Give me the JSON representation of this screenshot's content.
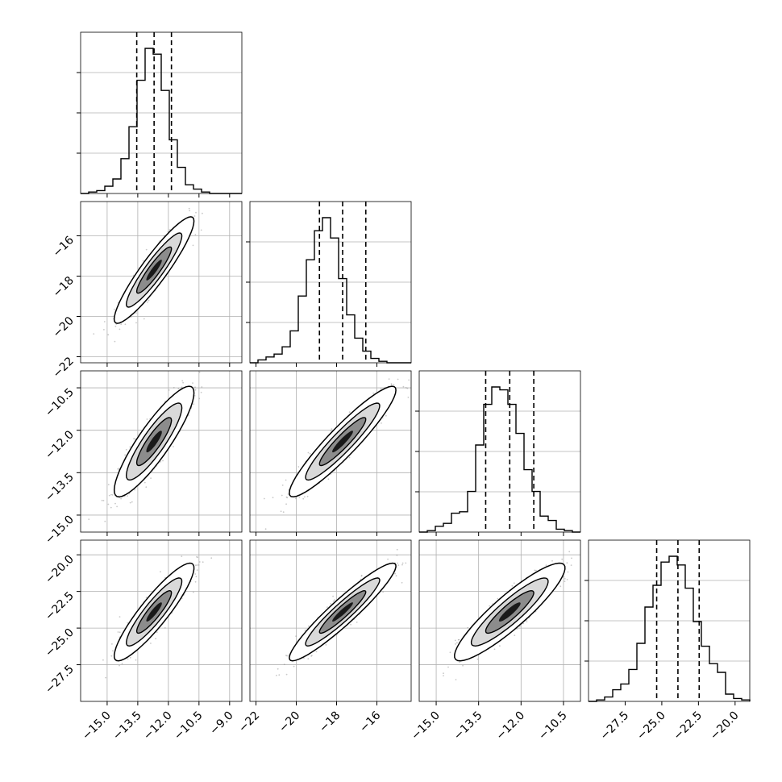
{
  "chart_data": {
    "type": "corner",
    "title": "",
    "params": [
      {
        "xlim": [
          -16.3,
          -8.4
        ],
        "xticks": [
          "−15.0",
          "−13.5",
          "−12.0",
          "−10.5",
          "−9.0"
        ],
        "xtick_values": [
          -15.0,
          -13.5,
          -12.0,
          -10.5,
          -9.0
        ],
        "mean": -12.7,
        "sd": 0.85
      },
      {
        "xlim": [
          -22.3,
          -14.3
        ],
        "xticks": [
          "−22",
          "−20",
          "−18",
          "−16"
        ],
        "xtick_values": [
          -22,
          -20,
          -18,
          -16
        ],
        "mean": -17.7,
        "sd": 1.15
      },
      {
        "xlim": [
          -15.6,
          -9.9
        ],
        "xticks": [
          "−15.0",
          "−13.5",
          "−12.0",
          "−10.5"
        ],
        "xtick_values": [
          -15.0,
          -13.5,
          -12.0,
          -10.5
        ],
        "mean": -12.4,
        "sd": 0.85
      },
      {
        "xlim": [
          -30.0,
          -19.0
        ],
        "xticks": [
          "−27.5",
          "−25.0",
          "−22.5",
          "−20.0"
        ],
        "xtick_values": [
          -27.5,
          -25.0,
          -22.5,
          -20.0
        ],
        "mean": -23.9,
        "sd": 1.45
      }
    ],
    "yticks": {
      "row1": [
        "−16",
        "−18",
        "−20",
        "−22"
      ],
      "row1_values": [
        -16,
        -18,
        -20,
        -22
      ],
      "row2": [
        "−10.5",
        "−12.0",
        "−13.5",
        "−15.0"
      ],
      "row2_values": [
        -10.5,
        -12.0,
        -13.5,
        -15.0
      ],
      "row3": [
        "−20.0",
        "−22.5",
        "−25.0",
        "−27.5"
      ],
      "row3_values": [
        -20.0,
        -22.5,
        -25.0,
        -27.5
      ]
    },
    "quantiles": {
      "p0": [
        -13.55,
        -12.7,
        -11.85
      ],
      "p1": [
        -18.85,
        -17.7,
        -16.55
      ],
      "p2": [
        -13.25,
        -12.4,
        -11.55
      ],
      "p3": [
        -25.35,
        -23.9,
        -22.45
      ]
    },
    "histograms": [
      [
        0,
        1,
        2,
        5,
        10,
        24,
        46,
        78,
        100,
        96,
        71,
        37,
        18,
        6,
        3,
        1,
        0,
        0,
        0,
        0
      ],
      [
        0,
        2,
        4,
        6,
        11,
        22,
        46,
        71,
        91,
        100,
        86,
        58,
        33,
        17,
        8,
        3,
        1,
        0,
        0,
        0
      ],
      [
        0,
        1,
        4,
        6,
        13,
        14,
        28,
        60,
        88,
        100,
        98,
        88,
        68,
        43,
        28,
        11,
        8,
        2,
        1,
        0
      ],
      [
        0,
        1,
        3,
        8,
        12,
        22,
        40,
        65,
        80,
        96,
        100,
        94,
        78,
        55,
        38,
        26,
        20,
        5,
        2,
        1
      ]
    ],
    "correlations": {
      "r10": 0.92,
      "r20": 0.88,
      "r21": 0.93,
      "r30": 0.9,
      "r31": 0.94,
      "r32": 0.9
    },
    "contour_levels": [
      1.0,
      1.6,
      2.3
    ],
    "grid": true,
    "colors": {
      "line": "#000000",
      "quantile": "#000000",
      "grid": "#b0b0b0",
      "scatter": "#888888"
    }
  }
}
